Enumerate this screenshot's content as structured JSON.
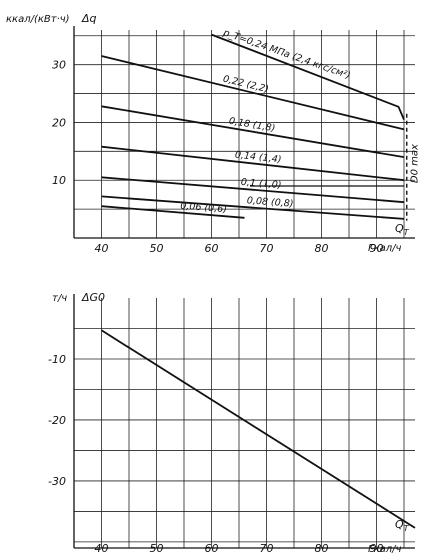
{
  "chart_data": [
    {
      "type": "line",
      "ylabel": "ккал/(кВт·ч)",
      "ysymbol": "Δq",
      "xlabel": "Гкал/ч",
      "xsymbol": "Q_T",
      "xticks": [
        "40",
        "50",
        "60",
        "70",
        "80",
        "90"
      ],
      "yticks": [
        "10",
        "20",
        "30"
      ],
      "xlim": [
        35,
        97
      ],
      "ylim": [
        0,
        36
      ],
      "max_label": "D0 max",
      "series": [
        {
          "name": "p_T=0,24 МПа (2,4 кгс/см²)",
          "x": [
            60,
            94,
            95
          ],
          "y": [
            35.2,
            22.7,
            20.5
          ]
        },
        {
          "name": "0,22 (2,2)",
          "x": [
            40,
            95
          ],
          "y": [
            31.5,
            18.8
          ]
        },
        {
          "name": "0,18 (1,8)",
          "x": [
            40,
            95
          ],
          "y": [
            22.8,
            14.0
          ]
        },
        {
          "name": "0,14 (1,4)",
          "x": [
            40,
            95
          ],
          "y": [
            15.8,
            10.0
          ]
        },
        {
          "name": "0,1 (1,0)",
          "x": [
            40,
            95
          ],
          "y": [
            10.5,
            6.2
          ]
        },
        {
          "name": "0,08 (0,8)",
          "x": [
            40,
            95
          ],
          "y": [
            7.2,
            3.3
          ]
        },
        {
          "name": "0,06 (0,6)",
          "x": [
            40,
            66
          ],
          "y": [
            5.5,
            3.5
          ]
        }
      ],
      "limit_line": {
        "x": [
          95.5,
          95.5
        ],
        "y": [
          21.5,
          3.0
        ]
      },
      "extra_line": {
        "x": [
          67,
          95
        ],
        "y": [
          9.0,
          9.0
        ]
      }
    },
    {
      "type": "line",
      "ylabel": "т/ч",
      "ysymbol": "ΔG0",
      "xlabel": "Гкал/ч",
      "xsymbol": "Q_T",
      "xticks": [
        "40",
        "50",
        "60",
        "70",
        "80",
        "90"
      ],
      "yticks": [
        "-10",
        "-20",
        "-30"
      ],
      "xlim": [
        35,
        97
      ],
      "ylim": [
        0,
        -41
      ],
      "series": [
        {
          "name": "",
          "x": [
            40,
            97
          ],
          "y": [
            -5.3,
            -37.7
          ]
        }
      ]
    }
  ]
}
